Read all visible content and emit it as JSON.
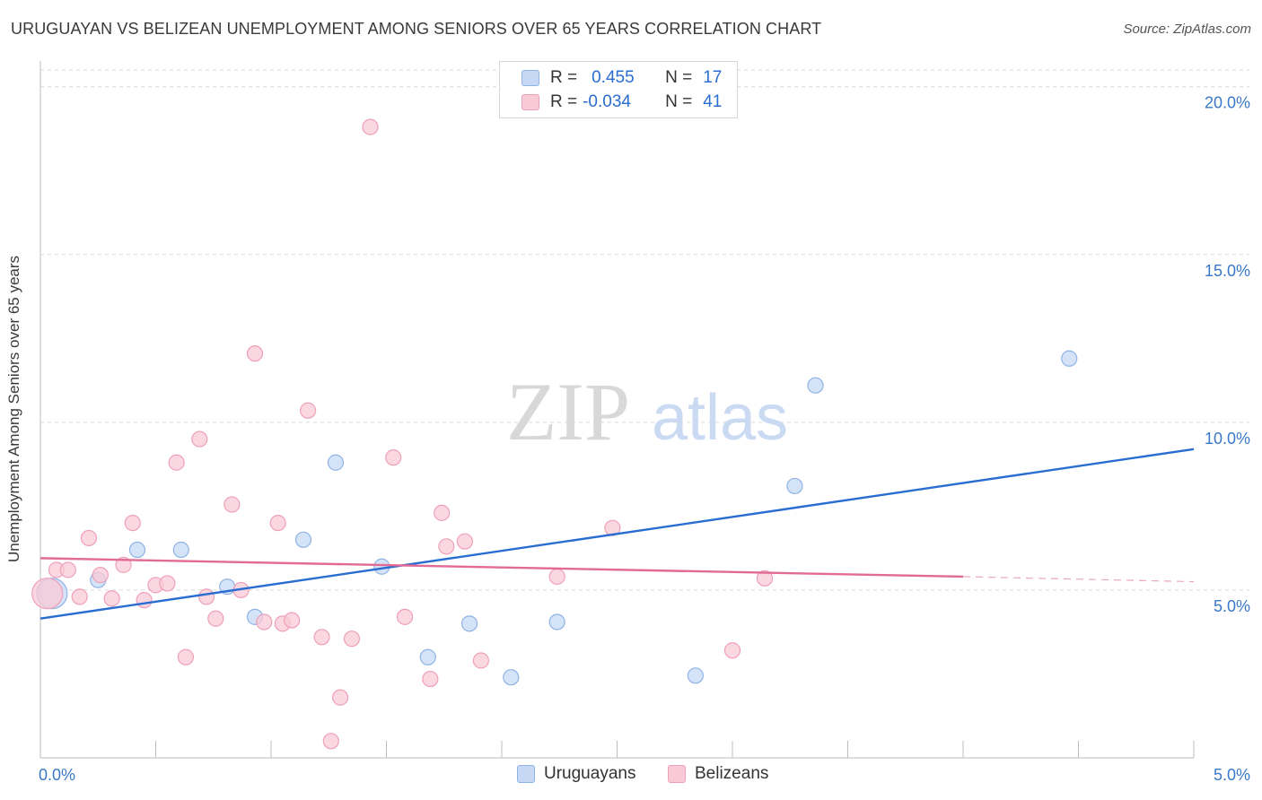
{
  "header": {
    "title": "URUGUAYAN VS BELIZEAN UNEMPLOYMENT AMONG SENIORS OVER 65 YEARS CORRELATION CHART",
    "source": "Source: ZipAtlas.com"
  },
  "watermark": {
    "zip": "ZIP",
    "atlas": "atlas"
  },
  "legend": {
    "rows": [
      {
        "r_label": "R =",
        "r_value": "0.455",
        "n_label": "N =",
        "n_value": "17"
      },
      {
        "r_label": "R =",
        "r_value": "-0.034",
        "n_label": "N =",
        "n_value": "41"
      }
    ]
  },
  "bottom_legend": {
    "uruguayans": "Uruguayans",
    "belizeans": "Belizeans"
  },
  "colors": {
    "uruguayans_fill": "#c5d9f5",
    "uruguayans_stroke": "#8fb3e6",
    "uruguayans_line": "#2a6dd1",
    "belizeans_fill": "#f9c9d7",
    "belizeans_stroke": "#eea0b8",
    "belizeans_line": "#e26a94",
    "tick_label": "#3a78c9",
    "grid": "#d9d9d9"
  },
  "chart_data": {
    "type": "scatter",
    "title": "URUGUAYAN VS BELIZEAN UNEMPLOYMENT AMONG SENIORS OVER 65 YEARS CORRELATION CHART",
    "xlabel": "",
    "ylabel": "Unemployment Among Seniors over 65 years",
    "xlim": [
      0,
      5
    ],
    "ylim": [
      0,
      20.5
    ],
    "x_tick_labels": [
      "0.0%",
      "5.0%"
    ],
    "y_ticks": [
      5,
      10,
      15,
      20
    ],
    "y_tick_labels": [
      "5.0%",
      "10.0%",
      "15.0%",
      "20.0%"
    ],
    "grid": true,
    "legend_position": "top-center",
    "series": [
      {
        "name": "Uruguayans",
        "points": [
          {
            "x": 0.05,
            "y": 4.9,
            "big": true
          },
          {
            "x": 0.25,
            "y": 5.3
          },
          {
            "x": 0.42,
            "y": 6.2
          },
          {
            "x": 0.61,
            "y": 6.2
          },
          {
            "x": 0.81,
            "y": 5.1
          },
          {
            "x": 0.93,
            "y": 4.2
          },
          {
            "x": 1.14,
            "y": 6.5
          },
          {
            "x": 1.28,
            "y": 8.8
          },
          {
            "x": 1.48,
            "y": 5.7
          },
          {
            "x": 1.68,
            "y": 3.0
          },
          {
            "x": 1.86,
            "y": 4.0
          },
          {
            "x": 2.04,
            "y": 2.4
          },
          {
            "x": 2.24,
            "y": 4.05
          },
          {
            "x": 2.84,
            "y": 2.45
          },
          {
            "x": 3.27,
            "y": 8.1
          },
          {
            "x": 3.36,
            "y": 11.1
          },
          {
            "x": 4.46,
            "y": 11.9
          }
        ],
        "trend": {
          "x0": 0,
          "y0": 4.15,
          "x1": 5,
          "y1": 9.2
        }
      },
      {
        "name": "Belizeans",
        "points": [
          {
            "x": 0.03,
            "y": 4.9,
            "big": true
          },
          {
            "x": 0.07,
            "y": 5.6
          },
          {
            "x": 0.12,
            "y": 5.6
          },
          {
            "x": 0.17,
            "y": 4.8
          },
          {
            "x": 0.21,
            "y": 6.55
          },
          {
            "x": 0.26,
            "y": 5.45
          },
          {
            "x": 0.31,
            "y": 4.75
          },
          {
            "x": 0.36,
            "y": 5.75
          },
          {
            "x": 0.4,
            "y": 7.0
          },
          {
            "x": 0.45,
            "y": 4.7
          },
          {
            "x": 0.5,
            "y": 5.15
          },
          {
            "x": 0.55,
            "y": 5.2
          },
          {
            "x": 0.59,
            "y": 8.8
          },
          {
            "x": 0.63,
            "y": 3.0
          },
          {
            "x": 0.69,
            "y": 9.5
          },
          {
            "x": 0.72,
            "y": 4.8
          },
          {
            "x": 0.76,
            "y": 4.15
          },
          {
            "x": 0.83,
            "y": 7.55
          },
          {
            "x": 0.87,
            "y": 5.0
          },
          {
            "x": 0.93,
            "y": 12.05
          },
          {
            "x": 0.97,
            "y": 4.05
          },
          {
            "x": 1.03,
            "y": 7.0
          },
          {
            "x": 1.05,
            "y": 4.0
          },
          {
            "x": 1.09,
            "y": 4.1
          },
          {
            "x": 1.16,
            "y": 10.35
          },
          {
            "x": 1.22,
            "y": 3.6
          },
          {
            "x": 1.26,
            "y": 0.5
          },
          {
            "x": 1.3,
            "y": 1.8
          },
          {
            "x": 1.35,
            "y": 3.55
          },
          {
            "x": 1.43,
            "y": 18.8
          },
          {
            "x": 1.53,
            "y": 8.95
          },
          {
            "x": 1.58,
            "y": 4.2
          },
          {
            "x": 1.69,
            "y": 2.35
          },
          {
            "x": 1.74,
            "y": 7.3
          },
          {
            "x": 1.76,
            "y": 6.3
          },
          {
            "x": 1.84,
            "y": 6.45
          },
          {
            "x": 1.91,
            "y": 2.9
          },
          {
            "x": 2.24,
            "y": 5.4
          },
          {
            "x": 2.48,
            "y": 6.85
          },
          {
            "x": 3.0,
            "y": 3.2
          },
          {
            "x": 3.14,
            "y": 5.35
          }
        ],
        "trend": {
          "x0": 0,
          "y0": 5.95,
          "x1": 4.0,
          "y1": 5.4
        },
        "trend_dashed": {
          "x0": 4.0,
          "y0": 5.4,
          "x1": 5,
          "y1": 5.25
        }
      }
    ]
  }
}
